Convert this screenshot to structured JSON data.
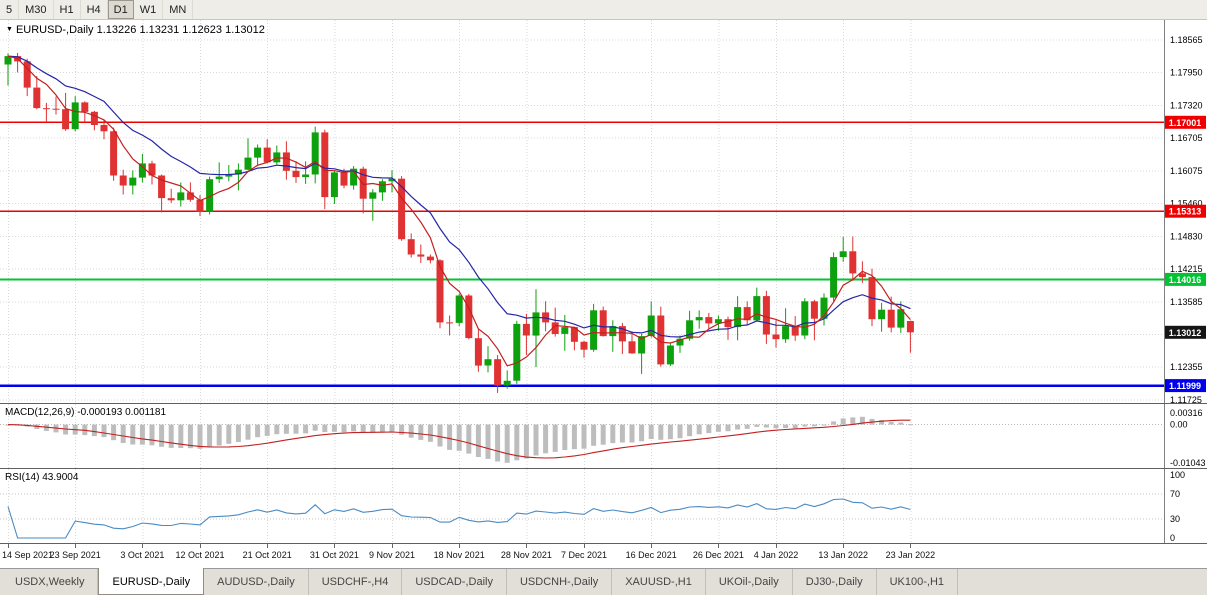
{
  "toolbar": {
    "buttons": [
      "5",
      "M30",
      "H1",
      "H4",
      "D1",
      "W1",
      "MN"
    ],
    "active": "D1"
  },
  "chart": {
    "title": "EURUSD-,Daily",
    "quote": "1.13226 1.13231 1.12623 1.13012"
  },
  "price_axis": {
    "labels": [
      "1.18565",
      "1.17950",
      "1.17320",
      "1.16705",
      "1.16075",
      "1.15460",
      "1.14830",
      "1.14215",
      "1.13585",
      "1.12970",
      "1.12355",
      "1.11725"
    ]
  },
  "hlines": [
    {
      "label": "1.17001",
      "price": 1.17001,
      "color": "#EE0000",
      "width": 1.4
    },
    {
      "label": "1.15313",
      "price": 1.15313,
      "color": "#EE0000",
      "width": 1.4
    },
    {
      "label": "1.14016",
      "price": 1.14016,
      "color": "#00C432",
      "width": 2
    },
    {
      "label": "1.11999",
      "price": 1.11999,
      "color": "#0000EE",
      "width": 2.6
    }
  ],
  "current_price": {
    "label": "1.13012",
    "price": 1.13012,
    "color": "#151515"
  },
  "macd": {
    "title": "MACD(12,26,9)",
    "values": "-0.000193 0.001181",
    "axis_labels": [
      "0.00316",
      "0.00",
      "-0.01043"
    ],
    "fast": 12,
    "slow": 26,
    "signal": 9
  },
  "rsi": {
    "title": "RSI(14)",
    "value": "43.9004",
    "axis_labels": [
      "100",
      "70",
      "30",
      "0"
    ],
    "levels": [
      70,
      30
    ],
    "period": 14
  },
  "tabs": [
    {
      "label": "USDX,Weekly",
      "active": false
    },
    {
      "label": "EURUSD-,Daily",
      "active": true
    },
    {
      "label": "AUDUSD-,Daily",
      "active": false
    },
    {
      "label": "USDCHF-,H4",
      "active": false
    },
    {
      "label": "USDCAD-,Daily",
      "active": false
    },
    {
      "label": "USDCNH-,Daily",
      "active": false
    },
    {
      "label": "XAUUSD-,H1",
      "active": false
    },
    {
      "label": "UKOil-,Daily",
      "active": false
    },
    {
      "label": "DJ30-,Daily",
      "active": false
    },
    {
      "label": "UK100-,H1",
      "active": false
    }
  ],
  "colors": {
    "up": "#0EA10E",
    "down": "#E03232",
    "grid": "#D8D8D8",
    "macd_hist": "#BDBDBD",
    "macd_signal": "#C22020",
    "rsi_line": "#4A8BC2"
  },
  "chart_data": {
    "type": "candlestick",
    "symbol": "EURUSD-",
    "period": "Daily",
    "y_axis_range": [
      1.1163,
      1.18945
    ],
    "overlays": {
      "fast": {
        "type": "sma",
        "period": 5,
        "color": "#C22020"
      },
      "slow": {
        "type": "ema",
        "period": 13,
        "color": "#2525A8"
      }
    },
    "x_labels": [
      {
        "index": 0,
        "label": "14 Sep 2021"
      },
      {
        "index": 7,
        "label": "23 Sep 2021"
      },
      {
        "index": 14,
        "label": "3 Oct 2021"
      },
      {
        "index": 20,
        "label": "12 Oct 2021"
      },
      {
        "index": 27,
        "label": "21 Oct 2021"
      },
      {
        "index": 34,
        "label": "31 Oct 2021"
      },
      {
        "index": 40,
        "label": "9 Nov 2021"
      },
      {
        "index": 47,
        "label": "18 Nov 2021"
      },
      {
        "index": 54,
        "label": "28 Nov 2021"
      },
      {
        "index": 60,
        "label": "7 Dec 2021"
      },
      {
        "index": 67,
        "label": "16 Dec 2021"
      },
      {
        "index": 74,
        "label": "26 Dec 2021"
      },
      {
        "index": 80,
        "label": "4 Jan 2022"
      },
      {
        "index": 87,
        "label": "13 Jan 2022"
      },
      {
        "index": 94,
        "label": "23 Jan 2022"
      }
    ],
    "candles": [
      [
        1.181,
        1.1831,
        1.177,
        1.1826
      ],
      [
        1.1826,
        1.1832,
        1.1795,
        1.1816
      ],
      [
        1.1816,
        1.1821,
        1.175,
        1.1766
      ],
      [
        1.1766,
        1.1788,
        1.1725,
        1.1727
      ],
      [
        1.1727,
        1.1737,
        1.17,
        1.1726
      ],
      [
        1.1726,
        1.1749,
        1.1715,
        1.1725
      ],
      [
        1.1725,
        1.1756,
        1.1684,
        1.1687
      ],
      [
        1.1687,
        1.175,
        1.1683,
        1.1738
      ],
      [
        1.1738,
        1.174,
        1.1701,
        1.172
      ],
      [
        1.172,
        1.1722,
        1.1685,
        1.1695
      ],
      [
        1.1695,
        1.1705,
        1.1668,
        1.1683
      ],
      [
        1.1683,
        1.169,
        1.1589,
        1.1599
      ],
      [
        1.1599,
        1.161,
        1.1563,
        1.158
      ],
      [
        1.158,
        1.1609,
        1.1563,
        1.1595
      ],
      [
        1.1595,
        1.164,
        1.1586,
        1.1622
      ],
      [
        1.1622,
        1.1627,
        1.1582,
        1.1599
      ],
      [
        1.1599,
        1.1601,
        1.1529,
        1.1556
      ],
      [
        1.1556,
        1.1574,
        1.1547,
        1.1552
      ],
      [
        1.1552,
        1.1586,
        1.154,
        1.1567
      ],
      [
        1.1567,
        1.1586,
        1.1549,
        1.1553
      ],
      [
        1.1553,
        1.1562,
        1.1522,
        1.153
      ],
      [
        1.153,
        1.1597,
        1.1525,
        1.1592
      ],
      [
        1.1592,
        1.1624,
        1.1585,
        1.1597
      ],
      [
        1.1597,
        1.1619,
        1.1588,
        1.1601
      ],
      [
        1.1601,
        1.1622,
        1.1571,
        1.161
      ],
      [
        1.161,
        1.167,
        1.1609,
        1.1633
      ],
      [
        1.1633,
        1.1658,
        1.1617,
        1.1652
      ],
      [
        1.1652,
        1.1668,
        1.1622,
        1.1624
      ],
      [
        1.1624,
        1.1656,
        1.162,
        1.1643
      ],
      [
        1.1643,
        1.1664,
        1.1591,
        1.1608
      ],
      [
        1.1608,
        1.1626,
        1.1585,
        1.1596
      ],
      [
        1.1596,
        1.1626,
        1.1583,
        1.1601
      ],
      [
        1.1601,
        1.1692,
        1.1584,
        1.1681
      ],
      [
        1.1681,
        1.1686,
        1.1535,
        1.1558
      ],
      [
        1.1558,
        1.1609,
        1.1545,
        1.1605
      ],
      [
        1.1605,
        1.1612,
        1.1575,
        1.158
      ],
      [
        1.158,
        1.1617,
        1.1572,
        1.1612
      ],
      [
        1.1612,
        1.1616,
        1.1527,
        1.1555
      ],
      [
        1.1555,
        1.1573,
        1.1513,
        1.1567
      ],
      [
        1.1567,
        1.1592,
        1.1551,
        1.1588
      ],
      [
        1.1588,
        1.1609,
        1.1567,
        1.1593
      ],
      [
        1.1593,
        1.1598,
        1.1475,
        1.1478
      ],
      [
        1.1478,
        1.1489,
        1.1443,
        1.1449
      ],
      [
        1.1449,
        1.1468,
        1.1433,
        1.1445
      ],
      [
        1.1445,
        1.1449,
        1.1432,
        1.1438
      ],
      [
        1.1438,
        1.144,
        1.1309,
        1.132
      ],
      [
        1.132,
        1.1333,
        1.1295,
        1.1319
      ],
      [
        1.1319,
        1.1374,
        1.1313,
        1.1371
      ],
      [
        1.1371,
        1.1374,
        1.1288,
        1.129
      ],
      [
        1.129,
        1.1307,
        1.1226,
        1.1238
      ],
      [
        1.1238,
        1.1275,
        1.1225,
        1.125
      ],
      [
        1.125,
        1.1258,
        1.1186,
        1.12
      ],
      [
        1.12,
        1.1229,
        1.1194,
        1.1209
      ],
      [
        1.1209,
        1.1323,
        1.1203,
        1.1317
      ],
      [
        1.1317,
        1.1336,
        1.1258,
        1.1295
      ],
      [
        1.1295,
        1.1383,
        1.1235,
        1.1339
      ],
      [
        1.1339,
        1.136,
        1.1303,
        1.132
      ],
      [
        1.132,
        1.1348,
        1.1293,
        1.1298
      ],
      [
        1.1298,
        1.1334,
        1.1266,
        1.1311
      ],
      [
        1.1311,
        1.1312,
        1.1267,
        1.1283
      ],
      [
        1.1283,
        1.1285,
        1.1253,
        1.1268
      ],
      [
        1.1268,
        1.1355,
        1.1264,
        1.1343
      ],
      [
        1.1343,
        1.135,
        1.1293,
        1.1294
      ],
      [
        1.1294,
        1.1324,
        1.1264,
        1.1313
      ],
      [
        1.1313,
        1.1319,
        1.126,
        1.1284
      ],
      [
        1.1284,
        1.1303,
        1.126,
        1.1261
      ],
      [
        1.1261,
        1.1298,
        1.1222,
        1.1294
      ],
      [
        1.1294,
        1.136,
        1.1291,
        1.1333
      ],
      [
        1.1333,
        1.135,
        1.1236,
        1.124
      ],
      [
        1.124,
        1.128,
        1.1237,
        1.1276
      ],
      [
        1.1276,
        1.1295,
        1.1262,
        1.1289
      ],
      [
        1.1289,
        1.1342,
        1.1285,
        1.1324
      ],
      [
        1.1324,
        1.1343,
        1.1308,
        1.133
      ],
      [
        1.133,
        1.1338,
        1.1308,
        1.1318
      ],
      [
        1.1318,
        1.1333,
        1.1304,
        1.1326
      ],
      [
        1.1326,
        1.1331,
        1.1287,
        1.1311
      ],
      [
        1.1311,
        1.137,
        1.1286,
        1.1349
      ],
      [
        1.1349,
        1.136,
        1.1316,
        1.1324
      ],
      [
        1.1324,
        1.1386,
        1.1321,
        1.137
      ],
      [
        1.137,
        1.138,
        1.1279,
        1.1297
      ],
      [
        1.1297,
        1.1324,
        1.1272,
        1.1288
      ],
      [
        1.1288,
        1.1347,
        1.1281,
        1.1313
      ],
      [
        1.1313,
        1.1332,
        1.1285,
        1.1295
      ],
      [
        1.1295,
        1.1366,
        1.1288,
        1.136
      ],
      [
        1.136,
        1.1363,
        1.1286,
        1.1327
      ],
      [
        1.1327,
        1.1375,
        1.1314,
        1.1367
      ],
      [
        1.1367,
        1.1453,
        1.136,
        1.1444
      ],
      [
        1.1444,
        1.1483,
        1.1435,
        1.1455
      ],
      [
        1.1455,
        1.1483,
        1.1399,
        1.1413
      ],
      [
        1.1413,
        1.1436,
        1.1395,
        1.1406
      ],
      [
        1.1406,
        1.1422,
        1.1313,
        1.1326
      ],
      [
        1.1326,
        1.1357,
        1.1302,
        1.1344
      ],
      [
        1.1344,
        1.1369,
        1.1301,
        1.131
      ],
      [
        1.131,
        1.136,
        1.13,
        1.1345
      ],
      [
        1.13226,
        1.13231,
        1.12623,
        1.13012
      ]
    ]
  }
}
